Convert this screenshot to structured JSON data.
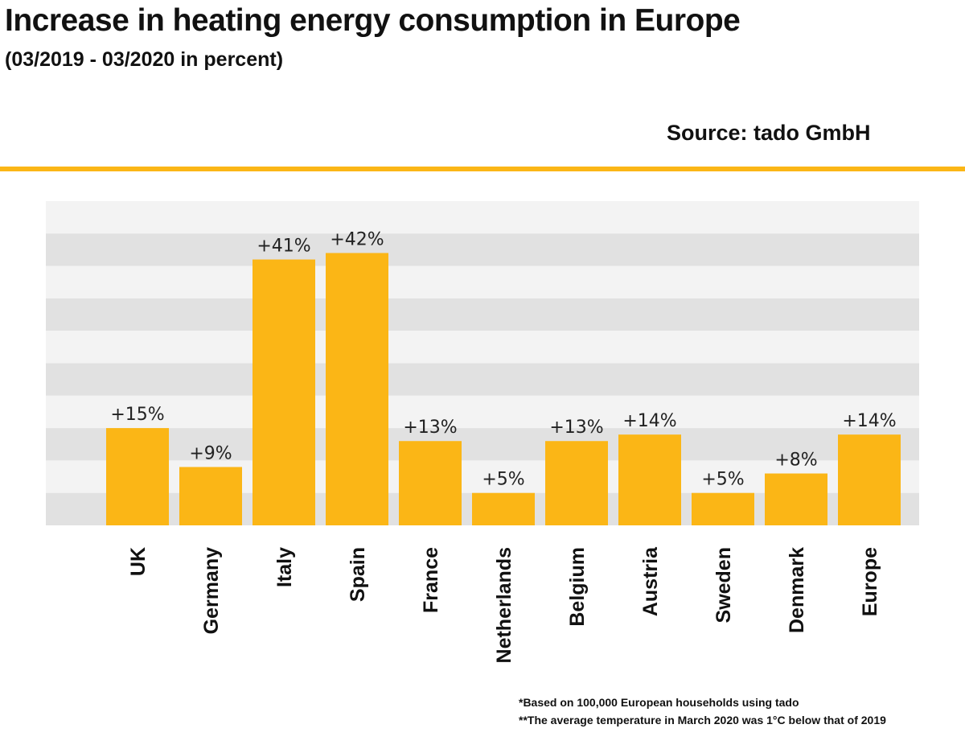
{
  "header": {
    "title": "Increase in heating energy consumption in Europe",
    "subtitle": "(03/2019 - 03/2020 in percent)",
    "source": "Source: tado GmbH"
  },
  "colors": {
    "accent": "#fbb616",
    "band_light": "#f3f3f3",
    "band_dark": "#e1e1e1"
  },
  "footnotes": [
    "*Based on 100,000 European households using tado",
    "**The average temperature in March 2020 was 1°C below that of 2019"
  ],
  "chart_data": {
    "type": "bar",
    "title": "Increase in heating energy consumption in Europe",
    "subtitle": "(03/2019 - 03/2020 in percent)",
    "xlabel": "",
    "ylabel": "",
    "categories": [
      "UK",
      "Germany",
      "Italy",
      "Spain",
      "France",
      "Netherlands",
      "Belgium",
      "Austria",
      "Sweden",
      "Denmark",
      "Europe"
    ],
    "values": [
      15,
      9,
      41,
      42,
      13,
      5,
      13,
      14,
      5,
      8,
      14
    ],
    "data_labels": [
      "+15%",
      "+9%",
      "+41%",
      "+42%",
      "+13%",
      "+5%",
      "+13%",
      "+14%",
      "+5%",
      "+8%",
      "+14%"
    ],
    "ylim": [
      0,
      50
    ],
    "grid": "alternating horizontal bands every 5%",
    "legend": "none",
    "category_label_orientation": "vertical"
  }
}
